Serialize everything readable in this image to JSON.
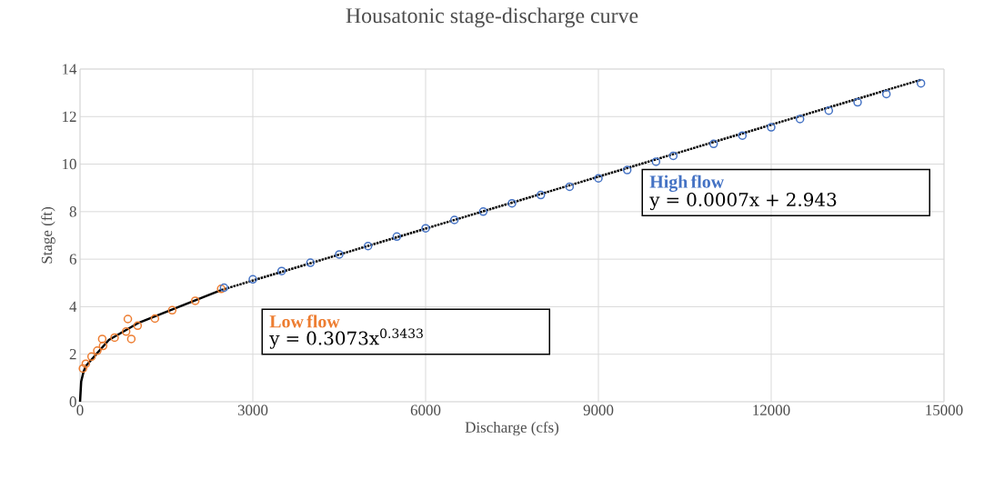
{
  "chart_data": {
    "type": "scatter",
    "title": "Housatonic stage-discharge curve",
    "xlabel": "Discharge (cfs)",
    "ylabel": "Stage (ft)",
    "xlim": [
      0,
      15000
    ],
    "xticks": [
      0,
      3000,
      6000,
      9000,
      12000,
      15000
    ],
    "ylim": [
      0,
      14
    ],
    "yticks": [
      0,
      2,
      4,
      6,
      8,
      10,
      12,
      14
    ],
    "grid": true,
    "series": [
      {
        "type": "line",
        "color": "#000000",
        "x": [
          0,
          20,
          60,
          100,
          500,
          1000,
          2450
        ],
        "values": [
          0,
          0.85,
          1.25,
          1.5,
          2.6,
          3.3,
          4.7
        ]
      },
      {
        "type": "line",
        "color": "#000000",
        "line_style": "dotted",
        "x": [
          2450,
          14600
        ],
        "values": [
          4.7,
          13.55
        ]
      },
      {
        "name": "Low flow",
        "color": "#ed7d31",
        "marker": "circle",
        "x": [
          50,
          100,
          200,
          300,
          385,
          400,
          600,
          800,
          830,
          890,
          1000,
          1300,
          1600,
          2000,
          2450
        ],
        "values": [
          1.4,
          1.6,
          1.9,
          2.15,
          2.64,
          2.35,
          2.7,
          2.95,
          3.48,
          2.64,
          3.2,
          3.5,
          3.85,
          4.25,
          4.75
        ]
      },
      {
        "name": "High flow",
        "color": "#4472c4",
        "marker": "circle",
        "x": [
          2500,
          3000,
          3500,
          4000,
          4500,
          5000,
          5500,
          6000,
          6500,
          7000,
          7500,
          8000,
          8500,
          9000,
          9500,
          10000,
          10300,
          11000,
          11500,
          12000,
          12500,
          13000,
          13500,
          14000,
          14600
        ],
        "values": [
          4.8,
          5.15,
          5.5,
          5.85,
          6.2,
          6.55,
          6.95,
          7.3,
          7.65,
          8.0,
          8.35,
          8.7,
          9.05,
          9.4,
          9.75,
          10.1,
          10.35,
          10.85,
          11.2,
          11.55,
          11.9,
          12.25,
          12.6,
          12.95,
          13.4
        ]
      }
    ],
    "annotations": [
      "y = 0.3073x$^{0.3433}$",
      "y = 0.0007x + 2.943"
    ]
  }
}
